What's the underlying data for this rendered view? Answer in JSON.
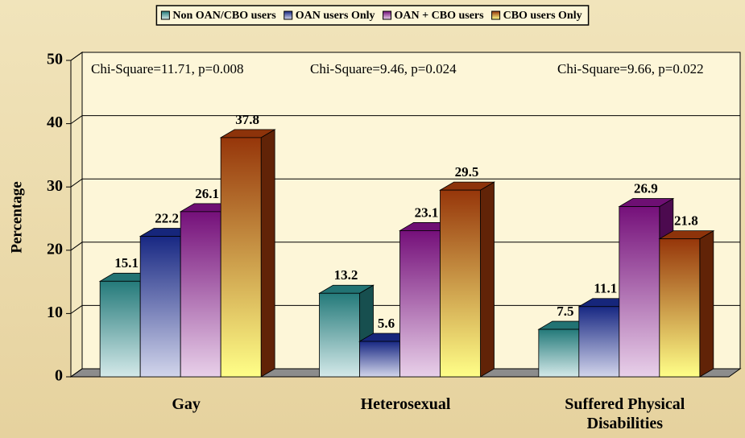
{
  "chart_data": {
    "type": "bar3d",
    "y_label": "Percentage",
    "categories": [
      "Gay",
      "Heterosexual",
      "Suffered Physical Disabilities"
    ],
    "series": [
      {
        "name": "Non OAN/CBO users",
        "color": "#2a9090",
        "values": [
          15.1,
          13.2,
          7.5
        ]
      },
      {
        "name": "OAN users Only",
        "color": "#1c2f9a",
        "values": [
          22.2,
          5.6,
          11.1
        ]
      },
      {
        "name": "OAN + CBO  users",
        "color": "#8a1390",
        "values": [
          26.1,
          23.1,
          26.9
        ]
      },
      {
        "name": "CBO users Only",
        "color": "#b0400c",
        "values": [
          37.8,
          29.5,
          21.8
        ]
      }
    ],
    "annotations": [
      "Chi-Square=11.71, p=0.008",
      "Chi-Square=9.46, p=0.024",
      "Chi-Square=9.66, p=0.022"
    ],
    "ylim": [
      0,
      50
    ],
    "yticks": [
      0,
      10,
      20,
      30,
      40,
      50
    ],
    "grid": true,
    "legend": "top"
  }
}
